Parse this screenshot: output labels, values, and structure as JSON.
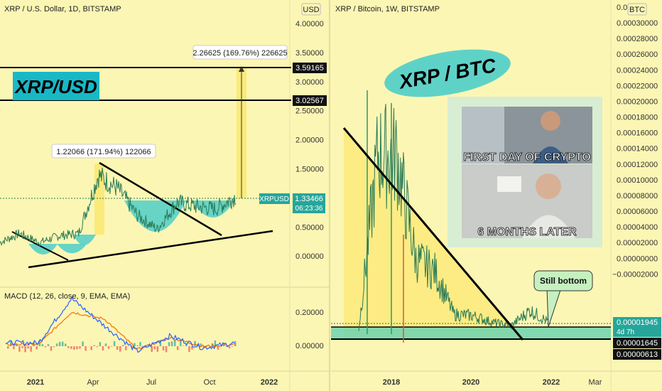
{
  "colors": {
    "background": "#fcf6b4",
    "cup_fill": "#58d0c8",
    "macd_line": "#2962ff",
    "signal_line": "#ff6d00",
    "price_line": "#2a7a56",
    "price_tag": "#26a69a",
    "badge": "#19b8c6",
    "bubble": "#5fd2c8"
  },
  "left_chart": {
    "header": "XRP / U.S. Dollar, 1D, BITSTAMP",
    "currency": "USD",
    "badge_text": "XRP/USD",
    "y_ticks": [
      "4.00000",
      "3.50000",
      "3.00000",
      "2.50000",
      "2.00000",
      "1.50000",
      "1.00000",
      "0.50000",
      "0.00000"
    ],
    "level_labels": [
      "3.59165",
      "3.02567"
    ],
    "price_tag": {
      "symbol": "XRPUSD",
      "value": "1.33466",
      "countdown": "06:23:36"
    },
    "measure_top": "2.26625 (169.76%) 226625",
    "measure_mid": "1.22066 (171.94%) 122066",
    "x_ticks": [
      "2021",
      "Apr",
      "Jul",
      "Oct",
      "2022"
    ]
  },
  "macd": {
    "header": "MACD (12, 26, close, 9, EMA, EMA)",
    "y_ticks": [
      "0.20000",
      "0.00000"
    ]
  },
  "right_chart": {
    "header": "XRP / Bitcoin, 1W, BITSTAMP",
    "currency": "BTC",
    "bubble_title": "XRP  /  BTC",
    "y_ticks": [
      "0.00032",
      "0.00030000",
      "0.00028000",
      "0.00026000",
      "0.00024000",
      "0.00022000",
      "0.00020000",
      "0.00018000",
      "0.00016000",
      "0.00014000",
      "0.00012000",
      "0.00010000",
      "0.00008000",
      "0.00006000",
      "0.00004000",
      "0.00002000",
      "0.00000000",
      "−0.00002000"
    ],
    "price_tag": {
      "value": "0.00001945",
      "countdown": "4d 7h"
    },
    "level_labels": [
      "0.00001645",
      "0.00000613"
    ],
    "callout": "Still bottom",
    "meme_top": "FIRST DAY OF CRYPTO",
    "meme_bottom": "6 MONTHS LATER",
    "x_ticks": [
      "2018",
      "2020",
      "2022",
      "Mar"
    ]
  },
  "chart_data": [
    {
      "type": "line",
      "title": "XRP / U.S. Dollar, 1D, BITSTAMP",
      "ylabel": "USD",
      "ylim": [
        0,
        4.2
      ],
      "x_ticks": [
        "2021",
        "Apr",
        "Jul",
        "Oct",
        "2022"
      ],
      "series": [
        {
          "x": [
            "2020-11",
            "2020-12",
            "2021-01",
            "2021-02",
            "2021-03",
            "2021-04",
            "2021-05",
            "2021-06",
            "2021-07",
            "2021-08",
            "2021-09",
            "2021-10",
            "2021-11"
          ],
          "values": [
            0.3,
            0.5,
            0.3,
            0.45,
            0.5,
            1.8,
            1.5,
            0.9,
            0.6,
            1.2,
            1.1,
            1.05,
            1.33
          ]
        }
      ],
      "annotations": [
        "3.59165",
        "3.02567",
        "2.26625 (169.76%) 226625",
        "1.22066 (171.94%) 122066",
        "XRPUSD 1.33466"
      ]
    },
    {
      "type": "line",
      "title": "MACD (12, 26, close, 9, EMA, EMA)",
      "ylim": [
        -0.07,
        0.3
      ],
      "series": [
        {
          "x": [
            "2020-12",
            "2021-02",
            "2021-04",
            "2021-05",
            "2021-07",
            "2021-09",
            "2021-10",
            "2021-11"
          ],
          "values": [
            0.02,
            0.02,
            0.28,
            0.12,
            -0.03,
            0.06,
            -0.01,
            0.02
          ]
        },
        {
          "x": [
            "2020-12",
            "2021-02",
            "2021-04",
            "2021-05",
            "2021-07",
            "2021-09",
            "2021-10",
            "2021-11"
          ],
          "values": [
            0.01,
            0.01,
            0.2,
            0.16,
            -0.02,
            0.05,
            0.0,
            0.01
          ]
        }
      ]
    },
    {
      "type": "line",
      "title": "XRP / Bitcoin, 1W, BITSTAMP",
      "ylabel": "BTC",
      "ylim": [
        -2e-05,
        0.00032
      ],
      "x_ticks": [
        "2018",
        "2020",
        "2022",
        "Mar"
      ],
      "series": [
        {
          "x": [
            "2017-04",
            "2017-05",
            "2017-12",
            "2018-06",
            "2019-01",
            "2019-07",
            "2020-01",
            "2020-07",
            "2021-01",
            "2021-04",
            "2021-10"
          ],
          "values": [
            1e-05,
            0.000235,
            0.000232,
            0.0001,
            8.5e-05,
            3e-05,
            2.8e-05,
            2e-05,
            1.5e-05,
            3.5e-05,
            1.945e-05
          ]
        }
      ],
      "annotations": [
        "0.00001945",
        "0.00001645",
        "0.00000613",
        "Still bottom"
      ]
    }
  ]
}
